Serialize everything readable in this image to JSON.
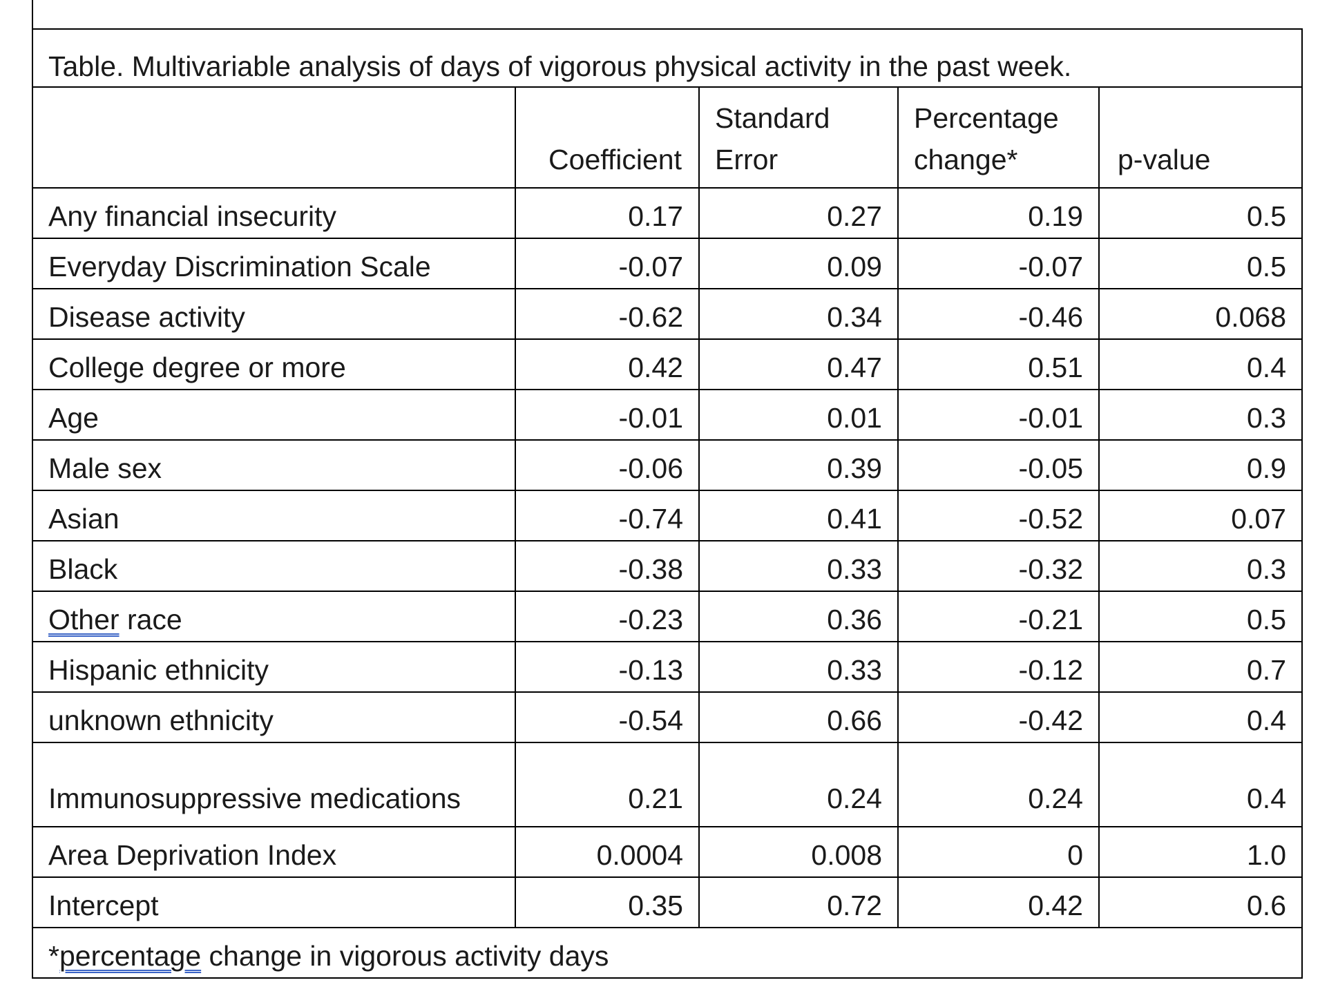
{
  "caption": "Table. Multivariable analysis of days of vigorous physical activity in the past week.",
  "headers": {
    "variable": "",
    "coefficient": "Coefficient",
    "std_error": "Standard Error",
    "pct_change": "Percentage change*",
    "p_value": "p-value"
  },
  "rows": [
    {
      "label": "Any financial insecurity",
      "coef": "0.17",
      "se": "0.27",
      "pct": "0.19",
      "p": "0.5"
    },
    {
      "label": "Everyday Discrimination Scale",
      "coef": "-0.07",
      "se": "0.09",
      "pct": "-0.07",
      "p": "0.5"
    },
    {
      "label": "Disease activity",
      "coef": "-0.62",
      "se": "0.34",
      "pct": "-0.46",
      "p": "0.068"
    },
    {
      "label": "College degree or more",
      "coef": "0.42",
      "se": "0.47",
      "pct": "0.51",
      "p": "0.4"
    },
    {
      "label": "Age",
      "coef": "-0.01",
      "se": "0.01",
      "pct": "-0.01",
      "p": "0.3"
    },
    {
      "label": "Male sex",
      "coef": "-0.06",
      "se": "0.39",
      "pct": "-0.05",
      "p": "0.9"
    },
    {
      "label": "Asian",
      "coef": "-0.74",
      "se": "0.41",
      "pct": "-0.52",
      "p": "0.07"
    },
    {
      "label": "Black",
      "coef": "-0.38",
      "se": "0.33",
      "pct": "-0.32",
      "p": "0.3"
    },
    {
      "label_underlined": "Other",
      "label_rest": " race",
      "coef": "-0.23",
      "se": "0.36",
      "pct": "-0.21",
      "p": "0.5"
    },
    {
      "label": "Hispanic ethnicity",
      "coef": "-0.13",
      "se": "0.33",
      "pct": "-0.12",
      "p": "0.7"
    },
    {
      "label": "unknown ethnicity",
      "coef": "-0.54",
      "se": "0.66",
      "pct": "-0.42",
      "p": "0.4"
    },
    {
      "label": "Immunosuppressive medications",
      "coef": "0.21",
      "se": "0.24",
      "pct": "0.24",
      "p": "0.4"
    },
    {
      "label": "Area Deprivation Index",
      "coef": "0.0004",
      "se": "0.008",
      "pct": "0",
      "p": "1.0"
    },
    {
      "label": "Intercept",
      "coef": "0.35",
      "se": "0.72",
      "pct": "0.42",
      "p": "0.6"
    }
  ],
  "footnote": {
    "prefix": "*",
    "underlined": "percentage",
    "rest": " change in vigorous activity days"
  }
}
